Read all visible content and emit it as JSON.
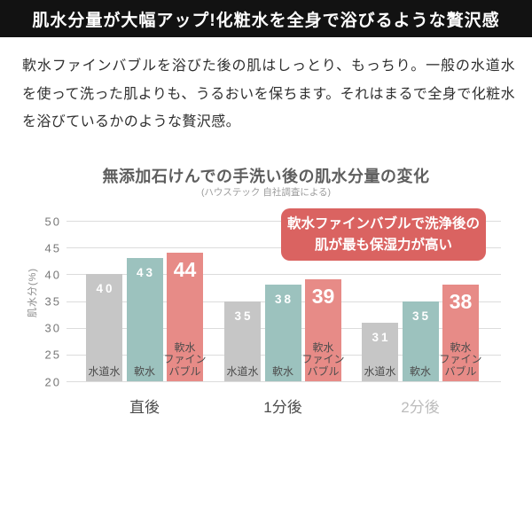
{
  "banner": {
    "title": "肌水分量が大幅アップ!化粧水を全身で浴びるような贅沢感"
  },
  "intro": {
    "text": "軟水ファインバブルを浴びた後の肌はしっとり、もっちり。一般の水道水を使って洗った肌よりも、うるおいを保ちます。それはまるで全身で化粧水を浴びているかのような贅沢感。"
  },
  "chart": {
    "title": "無添加石けんでの手洗い後の肌水分量の変化",
    "subtitle": "(ハウステック 自社調査による)",
    "ylabel": "肌水分(%)",
    "callout": {
      "line1": "軟水ファインバブルで洗浄後の",
      "line2": "肌が最も保湿力が高い"
    }
  },
  "chart_data": {
    "type": "bar",
    "title": "無添加石けんでの手洗い後の肌水分量の変化",
    "subtitle": "(ハウステック 自社調査による)",
    "xlabel": "",
    "ylabel": "肌水分(%)",
    "ylim": [
      20,
      50
    ],
    "yticks": [
      50,
      45,
      40,
      35,
      30,
      25,
      20
    ],
    "grid": true,
    "legend_position": "none",
    "categories": [
      "直後",
      "1分後",
      "2分後"
    ],
    "category_colors": [
      "#4b4b4b",
      "#4b4b4b",
      "#bcbcbc"
    ],
    "series": [
      {
        "name": "水道水",
        "slug": "tap-water",
        "color": "#c6c6c6",
        "label_lines": [
          "水道水"
        ],
        "emphasis": false,
        "values": [
          40,
          35,
          31
        ]
      },
      {
        "name": "軟水",
        "slug": "soft-water",
        "color": "#9cc2be",
        "label_lines": [
          "軟水"
        ],
        "emphasis": false,
        "values": [
          43,
          38,
          35
        ]
      },
      {
        "name": "軟水ファインバブル",
        "slug": "soft-water-fine-bubble",
        "color": "#e78b87",
        "label_lines": [
          "軟水",
          "ファイン",
          "バブル"
        ],
        "emphasis": true,
        "values": [
          44,
          39,
          38
        ]
      }
    ],
    "annotation": "軟水ファインバブルで洗浄後の肌が最も保湿力が高い",
    "annotation_color": "#da6361"
  }
}
